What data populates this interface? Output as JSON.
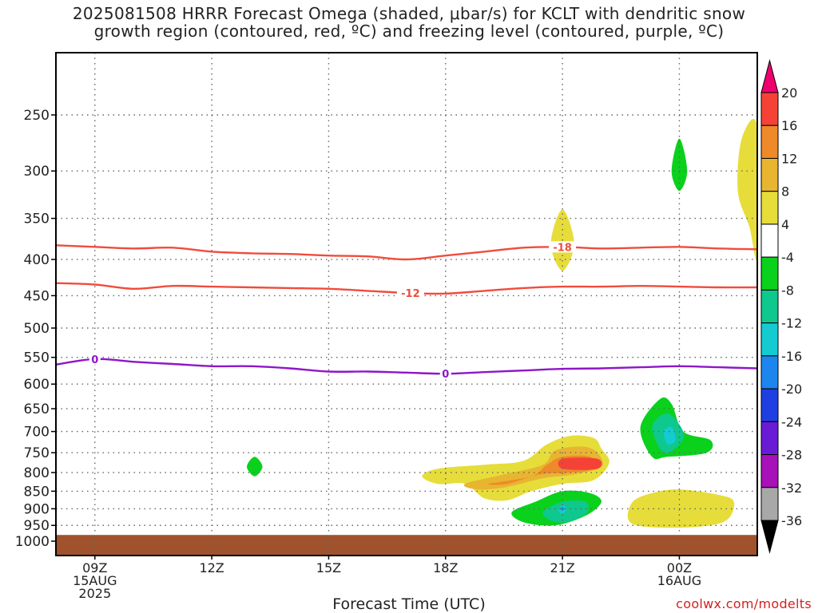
{
  "title": {
    "line1": "2025081508 HRRR Forecast Omega (shaded, μbar/s) for KCLT with dendritic snow",
    "line2": "growth region (contoured, red, ºC) and freezing level (contoured, purple, ºC)"
  },
  "credit": "coolwx.com/modelts",
  "chart_data": {
    "type": "time-height cross section",
    "title": "2025081508 HRRR Forecast Omega (shaded, μbar/s) for KCLT with dendritic snow growth region (contoured, red, ºC) and freezing level (contoured, purple, ºC)",
    "xlabel": "Forecast Time (UTC)",
    "ylabel": "",
    "x_ticks": [
      {
        "h": 9,
        "label": [
          "09Z",
          "15AUG",
          "2025"
        ]
      },
      {
        "h": 12,
        "label": [
          "12Z"
        ]
      },
      {
        "h": 15,
        "label": [
          "15Z"
        ]
      },
      {
        "h": 18,
        "label": [
          "18Z"
        ]
      },
      {
        "h": 21,
        "label": [
          "21Z"
        ]
      },
      {
        "h": 24,
        "label": [
          "00Z",
          "16AUG"
        ]
      }
    ],
    "xlim": [
      8,
      26
    ],
    "y_ticks": [
      250,
      300,
      350,
      400,
      450,
      500,
      550,
      600,
      650,
      700,
      750,
      800,
      850,
      900,
      950,
      1000
    ],
    "y_scale": "log-pressure",
    "ylim": [
      200,
      1000
    ],
    "grid": true,
    "colorbar": {
      "labels": [
        "20",
        "16",
        "12",
        "8",
        "4",
        "-4",
        "-8",
        "-12",
        "-16",
        "-20",
        "-24",
        "-28",
        "-32",
        "-36"
      ],
      "colors": [
        "#f0006e",
        "#f44336",
        "#ee8a29",
        "#e8b530",
        "#e6dd3a",
        "#ffffff",
        "#0ad11c",
        "#0ec88e",
        "#14cbd2",
        "#1c86ee",
        "#1f3fe3",
        "#6a1bd6",
        "#a810b8",
        "#a8a8a8",
        "#000000"
      ]
    },
    "shading_colors": {
      "4": "#e6dd3a",
      "8": "#e8b530",
      "12": "#ee8a29",
      "16": "#f44336",
      "-4": "#0ad11c",
      "-8": "#0ec88e",
      "-12": "#14cbd2",
      "-16": "#1c86ee"
    },
    "omega_regions": [
      {
        "level": 4,
        "points": [
          [
            21,
            340
          ],
          [
            21.3,
            380
          ],
          [
            21,
            415
          ],
          [
            20.7,
            380
          ]
        ]
      },
      {
        "level": -4,
        "points": [
          [
            24,
            270
          ],
          [
            24.2,
            300
          ],
          [
            24,
            320
          ],
          [
            23.8,
            300
          ]
        ]
      },
      {
        "level": 4,
        "points": [
          [
            25.6,
            270
          ],
          [
            26,
            260
          ],
          [
            26,
            395
          ],
          [
            25.8,
            360
          ],
          [
            25.5,
            320
          ]
        ]
      },
      {
        "level": -4,
        "points": [
          [
            13.1,
            760
          ],
          [
            13.3,
            785
          ],
          [
            13.1,
            810
          ],
          [
            12.9,
            785
          ]
        ]
      },
      {
        "level": 4,
        "points": [
          [
            17.4,
            810
          ],
          [
            17.8,
            790
          ],
          [
            19,
            780
          ],
          [
            20,
            770
          ],
          [
            20.6,
            730
          ],
          [
            21.2,
            710
          ],
          [
            21.8,
            715
          ],
          [
            22,
            740
          ],
          [
            22.2,
            775
          ],
          [
            21.8,
            820
          ],
          [
            21,
            830
          ],
          [
            20.2,
            850
          ],
          [
            19.6,
            875
          ],
          [
            19,
            870
          ],
          [
            18.5,
            830
          ],
          [
            17.8,
            830
          ]
        ]
      },
      {
        "level": 8,
        "points": [
          [
            18.5,
            830
          ],
          [
            19.5,
            805
          ],
          [
            20.5,
            780
          ],
          [
            20.8,
            745
          ],
          [
            21.5,
            735
          ],
          [
            21.9,
            750
          ],
          [
            22,
            785
          ],
          [
            21.3,
            805
          ],
          [
            20.5,
            815
          ],
          [
            19.5,
            840
          ],
          [
            18.8,
            845
          ]
        ]
      },
      {
        "level": 12,
        "points": [
          [
            19.1,
            830
          ],
          [
            20.2,
            810
          ],
          [
            20.6,
            780
          ],
          [
            21,
            760
          ],
          [
            21.7,
            760
          ],
          [
            21.8,
            790
          ],
          [
            21.2,
            800
          ],
          [
            20.4,
            805
          ],
          [
            19.6,
            830
          ]
        ]
      },
      {
        "level": 16,
        "points": [
          [
            21,
            765
          ],
          [
            21.9,
            765
          ],
          [
            21.9,
            790
          ],
          [
            21,
            790
          ]
        ]
      },
      {
        "level": -4,
        "points": [
          [
            23.0,
            690
          ],
          [
            23.5,
            630
          ],
          [
            23.8,
            640
          ],
          [
            24.1,
            700
          ],
          [
            24.8,
            720
          ],
          [
            24.7,
            750
          ],
          [
            23.7,
            760
          ],
          [
            23.3,
            760
          ]
        ]
      },
      {
        "level": -8,
        "points": [
          [
            23.3,
            690
          ],
          [
            23.7,
            660
          ],
          [
            24.1,
            700
          ],
          [
            24.0,
            730
          ],
          [
            23.6,
            750
          ]
        ]
      },
      {
        "level": -12,
        "points": [
          [
            23.6,
            700
          ],
          [
            23.8,
            690
          ],
          [
            23.9,
            720
          ],
          [
            23.7,
            730
          ]
        ]
      },
      {
        "level": -4,
        "points": [
          [
            19.7,
            910
          ],
          [
            20.3,
            880
          ],
          [
            21,
            850
          ],
          [
            21.7,
            855
          ],
          [
            22,
            880
          ],
          [
            21.6,
            920
          ],
          [
            20.8,
            950
          ],
          [
            20,
            940
          ]
        ]
      },
      {
        "level": -8,
        "points": [
          [
            20.5,
            910
          ],
          [
            21,
            880
          ],
          [
            21.6,
            880
          ],
          [
            21.6,
            915
          ],
          [
            21.1,
            940
          ],
          [
            20.7,
            935
          ]
        ]
      },
      {
        "level": -12,
        "points": [
          [
            20.9,
            905
          ],
          [
            21,
            890
          ],
          [
            21.1,
            900
          ],
          [
            21,
            915
          ]
        ]
      },
      {
        "level": -16,
        "points": [
          [
            21,
            895
          ],
          [
            21.05,
            900
          ],
          [
            21,
            905
          ],
          [
            20.95,
            900
          ]
        ]
      },
      {
        "level": 4,
        "points": [
          [
            22.8,
            880
          ],
          [
            23.3,
            855
          ],
          [
            24,
            845
          ],
          [
            25,
            860
          ],
          [
            25.4,
            880
          ],
          [
            25.2,
            935
          ],
          [
            24.4,
            955
          ],
          [
            23.2,
            955
          ],
          [
            22.7,
            935
          ]
        ]
      }
    ],
    "terrain_pressure": 980,
    "contours": [
      {
        "value": -18,
        "color": "#f04c3c",
        "label": "-18",
        "label_at": 21,
        "points": [
          [
            8,
            382
          ],
          [
            9,
            384
          ],
          [
            10,
            386
          ],
          [
            11,
            385
          ],
          [
            12,
            390
          ],
          [
            13,
            392
          ],
          [
            14,
            393
          ],
          [
            15,
            395
          ],
          [
            16,
            396
          ],
          [
            17,
            400
          ],
          [
            18,
            395
          ],
          [
            19,
            390
          ],
          [
            20,
            385
          ],
          [
            21,
            384
          ],
          [
            22,
            386
          ],
          [
            23,
            385
          ],
          [
            24,
            384
          ],
          [
            25,
            386
          ],
          [
            26,
            387
          ]
        ]
      },
      {
        "value": -12,
        "color": "#f04c3c",
        "label": "-12",
        "label_at": 17.1,
        "points": [
          [
            8,
            432
          ],
          [
            9,
            434
          ],
          [
            10,
            440
          ],
          [
            11,
            436
          ],
          [
            12,
            437
          ],
          [
            13,
            438
          ],
          [
            14,
            439
          ],
          [
            15,
            440
          ],
          [
            16,
            443
          ],
          [
            17,
            446
          ],
          [
            18,
            447
          ],
          [
            19,
            443
          ],
          [
            20,
            439
          ],
          [
            21,
            437
          ],
          [
            22,
            437
          ],
          [
            23,
            436
          ],
          [
            24,
            437
          ],
          [
            25,
            438
          ],
          [
            26,
            438
          ]
        ]
      },
      {
        "value": 0,
        "color": "#8f16c8",
        "label": "0",
        "label_at": 9,
        "label2_at": 18,
        "points": [
          [
            8,
            563
          ],
          [
            9,
            553
          ],
          [
            10,
            558
          ],
          [
            11,
            562
          ],
          [
            12,
            566
          ],
          [
            13,
            566
          ],
          [
            14,
            570
          ],
          [
            15,
            576
          ],
          [
            16,
            576
          ],
          [
            17,
            578
          ],
          [
            18,
            580
          ],
          [
            19,
            577
          ],
          [
            20,
            574
          ],
          [
            21,
            571
          ],
          [
            22,
            570
          ],
          [
            23,
            568
          ],
          [
            24,
            566
          ],
          [
            25,
            568
          ],
          [
            26,
            570
          ]
        ]
      }
    ]
  }
}
